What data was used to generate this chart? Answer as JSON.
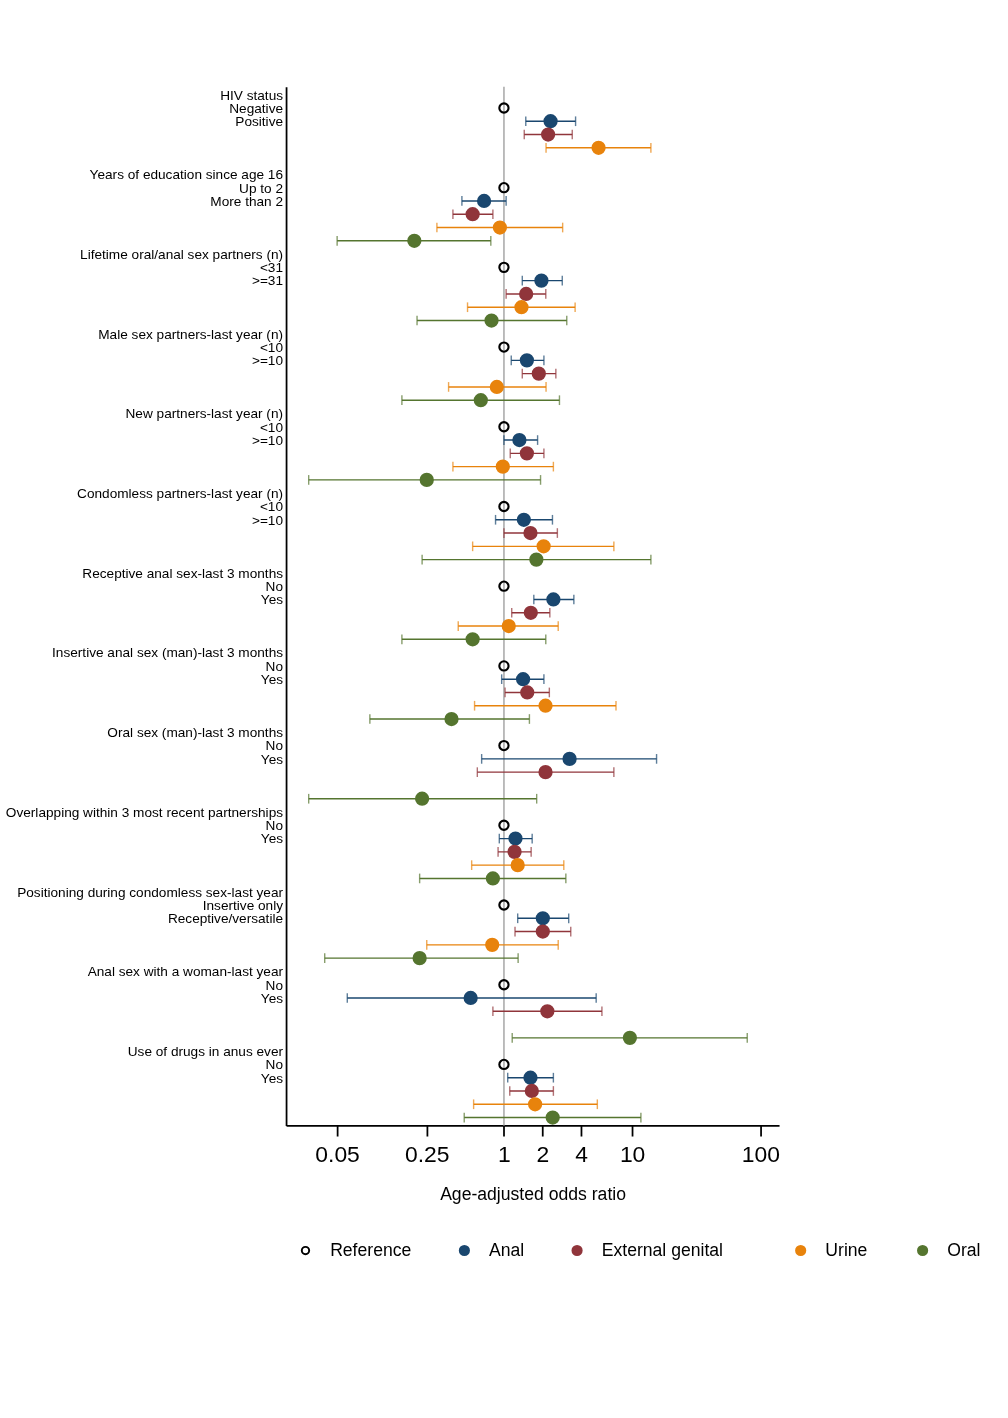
{
  "chart_data": {
    "type": "scatter",
    "orientation": "horizontal",
    "log": "x",
    "marker": "circle",
    "legend": "bottom",
    "xlabel": "Age-adjusted odds ratio",
    "xlim": [
      0.02,
      140
    ],
    "xticks": [
      0.05,
      0.25,
      1,
      2,
      4,
      10,
      100
    ],
    "categories": [
      "HIV status",
      "Negative",
      "Positive",
      null,
      null,
      null,
      "Years of education since age 16",
      "Up to 2",
      "More than 2",
      null,
      null,
      null,
      "Lifetime oral/anal sex partners (n)",
      "<31",
      ">=31",
      null,
      null,
      null,
      "Male sex partners-last year (n)",
      "<10",
      ">=10",
      null,
      null,
      null,
      "New partners-last year (n)",
      "<10",
      ">=10",
      null,
      null,
      null,
      "Condomless partners-last year (n)",
      "<10",
      ">=10",
      null,
      null,
      null,
      "Receptive anal sex-last 3 months",
      "No",
      "Yes",
      null,
      null,
      null,
      "Insertive anal sex (man)-last 3 months",
      "No",
      "Yes",
      null,
      null,
      null,
      "Oral sex (man)-last 3 months",
      "No",
      "Yes",
      null,
      null,
      null,
      "Overlapping within 3 most recent partnerships",
      "No",
      "Yes",
      null,
      null,
      null,
      "Positioning during condomless sex-last year",
      "Insertive only",
      "Receptive/versatile",
      null,
      null,
      null,
      "Anal sex with a woman-last year",
      "No",
      "Yes",
      null,
      null,
      null,
      "Use of drugs in anus ever",
      "No",
      "Yes",
      null,
      null,
      null
    ],
    "ref_lines": [
      {
        "axis": "x",
        "value": 1,
        "color": "#b4b4b4"
      }
    ],
    "series": [
      {
        "name": "Reference",
        "color": "#000000",
        "values": [
          null,
          1,
          null,
          null,
          null,
          null,
          null,
          1,
          null,
          null,
          null,
          null,
          null,
          1,
          null,
          null,
          null,
          null,
          null,
          1,
          null,
          null,
          null,
          null,
          null,
          1,
          null,
          null,
          null,
          null,
          null,
          1,
          null,
          null,
          null,
          null,
          null,
          1,
          null,
          null,
          null,
          null,
          null,
          1,
          null,
          null,
          null,
          null,
          null,
          1,
          null,
          null,
          null,
          null,
          null,
          1,
          null,
          null,
          null,
          null,
          null,
          1,
          null,
          null,
          null,
          null,
          null,
          1,
          null,
          null,
          null,
          null,
          null,
          1,
          null,
          null,
          null,
          null
        ]
      },
      {
        "name": "Anal",
        "color": "#1a476f",
        "values": [
          null,
          null,
          2.31,
          null,
          null,
          null,
          null,
          null,
          0.7,
          null,
          null,
          null,
          null,
          null,
          1.96,
          null,
          null,
          null,
          null,
          null,
          1.51,
          null,
          null,
          null,
          null,
          null,
          1.32,
          null,
          null,
          null,
          null,
          null,
          1.43,
          null,
          null,
          null,
          null,
          null,
          2.43,
          null,
          null,
          null,
          null,
          null,
          1.41,
          null,
          null,
          null,
          null,
          null,
          3.25,
          null,
          null,
          null,
          null,
          null,
          1.23,
          null,
          null,
          null,
          null,
          null,
          2.01,
          null,
          null,
          null,
          null,
          null,
          0.55,
          null,
          null,
          null,
          null,
          null,
          1.61,
          null,
          null,
          null
        ],
        "errors": [
          null,
          null,
          [
            1.48,
            3.62
          ],
          null,
          null,
          null,
          null,
          null,
          [
            0.47,
            1.04
          ],
          null,
          null,
          null,
          null,
          null,
          [
            1.39,
            2.85
          ],
          null,
          null,
          null,
          null,
          null,
          [
            1.14,
            2.05
          ],
          null,
          null,
          null,
          null,
          null,
          [
            1.0,
            1.83
          ],
          null,
          null,
          null,
          null,
          null,
          [
            0.86,
            2.39
          ],
          null,
          null,
          null,
          null,
          null,
          [
            1.71,
            3.51
          ],
          null,
          null,
          null,
          null,
          null,
          [
            0.96,
            2.05
          ],
          null,
          null,
          null,
          null,
          null,
          [
            0.67,
            15.5
          ],
          null,
          null,
          null,
          null,
          null,
          [
            0.92,
            1.66
          ],
          null,
          null,
          null,
          null,
          null,
          [
            1.28,
            3.2
          ],
          null,
          null,
          null,
          null,
          null,
          [
            0.06,
            5.24
          ],
          null,
          null,
          null,
          null,
          null,
          [
            1.07,
            2.43
          ],
          null,
          null,
          null
        ]
      },
      {
        "name": "External genital",
        "color": "#90353b",
        "values": [
          null,
          null,
          null,
          2.21,
          null,
          null,
          null,
          null,
          null,
          0.57,
          null,
          null,
          null,
          null,
          null,
          1.49,
          null,
          null,
          null,
          null,
          null,
          1.87,
          null,
          null,
          null,
          null,
          null,
          1.51,
          null,
          null,
          null,
          null,
          null,
          1.61,
          null,
          null,
          null,
          null,
          null,
          1.62,
          null,
          null,
          null,
          null,
          null,
          1.52,
          null,
          null,
          null,
          null,
          null,
          2.11,
          null,
          null,
          null,
          null,
          null,
          1.21,
          null,
          null,
          null,
          null,
          null,
          2.01,
          null,
          null,
          null,
          null,
          null,
          2.18,
          null,
          null,
          null,
          null,
          null,
          1.65,
          null,
          null
        ],
        "errors": [
          null,
          null,
          null,
          [
            1.44,
            3.41
          ],
          null,
          null,
          null,
          null,
          null,
          [
            0.4,
            0.82
          ],
          null,
          null,
          null,
          null,
          null,
          [
            1.04,
            2.12
          ],
          null,
          null,
          null,
          null,
          null,
          [
            1.39,
            2.54
          ],
          null,
          null,
          null,
          null,
          null,
          [
            1.12,
            2.05
          ],
          null,
          null,
          null,
          null,
          null,
          [
            1.0,
            2.61
          ],
          null,
          null,
          null,
          null,
          null,
          [
            1.15,
            2.28
          ],
          null,
          null,
          null,
          null,
          null,
          [
            1.02,
            2.26
          ],
          null,
          null,
          null,
          null,
          null,
          [
            0.62,
            7.2
          ],
          null,
          null,
          null,
          null,
          null,
          [
            0.9,
            1.63
          ],
          null,
          null,
          null,
          null,
          null,
          [
            1.22,
            3.32
          ],
          null,
          null,
          null,
          null,
          null,
          [
            0.82,
            5.81
          ],
          null,
          null,
          null,
          null,
          null,
          [
            1.11,
            2.43
          ],
          null,
          null
        ]
      },
      {
        "name": "Urine",
        "color": "#e8830c",
        "values": [
          null,
          null,
          null,
          null,
          5.47,
          null,
          null,
          null,
          null,
          null,
          0.93,
          null,
          null,
          null,
          null,
          null,
          1.37,
          null,
          null,
          null,
          null,
          null,
          0.88,
          null,
          null,
          null,
          null,
          null,
          0.98,
          null,
          null,
          null,
          null,
          null,
          2.04,
          null,
          null,
          null,
          null,
          null,
          1.09,
          null,
          null,
          null,
          null,
          null,
          2.11,
          null,
          null,
          null,
          null,
          null,
          null,
          null,
          null,
          null,
          null,
          null,
          1.28,
          null,
          null,
          null,
          null,
          null,
          0.81,
          null,
          null,
          null,
          null,
          null,
          null,
          null,
          null,
          null,
          null,
          null,
          1.75,
          null
        ],
        "errors": [
          null,
          null,
          null,
          null,
          [
            2.13,
            14
          ],
          null,
          null,
          null,
          null,
          null,
          [
            0.3,
            2.87
          ],
          null,
          null,
          null,
          null,
          null,
          [
            0.52,
            3.59
          ],
          null,
          null,
          null,
          null,
          null,
          [
            0.37,
            2.13
          ],
          null,
          null,
          null,
          null,
          null,
          [
            0.4,
            2.43
          ],
          null,
          null,
          null,
          null,
          null,
          [
            0.57,
            7.2
          ],
          null,
          null,
          null,
          null,
          null,
          [
            0.44,
            2.65
          ],
          null,
          null,
          null,
          null,
          null,
          [
            0.59,
            7.48
          ],
          null,
          null,
          null,
          null,
          null,
          null,
          null,
          null,
          null,
          null,
          null,
          [
            0.56,
            2.93
          ],
          null,
          null,
          null,
          null,
          null,
          [
            0.25,
            2.65
          ],
          null,
          null,
          null,
          null,
          null,
          null,
          null,
          null,
          null,
          null,
          null,
          [
            0.58,
            5.35
          ],
          null
        ]
      },
      {
        "name": "Oral",
        "color": "#55752f",
        "values": [
          null,
          null,
          null,
          null,
          null,
          null,
          null,
          null,
          null,
          null,
          null,
          0.2,
          null,
          null,
          null,
          null,
          null,
          0.8,
          null,
          null,
          null,
          null,
          null,
          0.66,
          null,
          null,
          null,
          null,
          null,
          0.25,
          null,
          null,
          null,
          null,
          null,
          1.79,
          null,
          null,
          null,
          null,
          null,
          0.57,
          null,
          null,
          null,
          null,
          null,
          0.39,
          null,
          null,
          null,
          null,
          null,
          0.23,
          null,
          null,
          null,
          null,
          null,
          0.82,
          null,
          null,
          null,
          null,
          null,
          0.22,
          null,
          null,
          null,
          null,
          null,
          9.6,
          null,
          null,
          null,
          null,
          null,
          2.4
        ],
        "errors": [
          null,
          null,
          null,
          null,
          null,
          null,
          null,
          null,
          null,
          null,
          null,
          [
            0.05,
            0.79
          ],
          null,
          null,
          null,
          null,
          null,
          [
            0.21,
            3.09
          ],
          null,
          null,
          null,
          null,
          null,
          [
            0.16,
            2.71
          ],
          null,
          null,
          null,
          null,
          null,
          [
            0.03,
            1.93
          ],
          null,
          null,
          null,
          null,
          null,
          [
            0.23,
            14
          ],
          null,
          null,
          null,
          null,
          null,
          [
            0.16,
            2.12
          ],
          null,
          null,
          null,
          null,
          null,
          [
            0.09,
            1.58
          ],
          null,
          null,
          null,
          null,
          null,
          [
            0.03,
            1.8
          ],
          null,
          null,
          null,
          null,
          null,
          [
            0.22,
            3.04
          ],
          null,
          null,
          null,
          null,
          null,
          [
            0.04,
            1.29
          ],
          null,
          null,
          null,
          null,
          null,
          [
            1.16,
            79
          ],
          null,
          null,
          null,
          null,
          null,
          [
            0.49,
            11.7
          ]
        ]
      }
    ]
  }
}
